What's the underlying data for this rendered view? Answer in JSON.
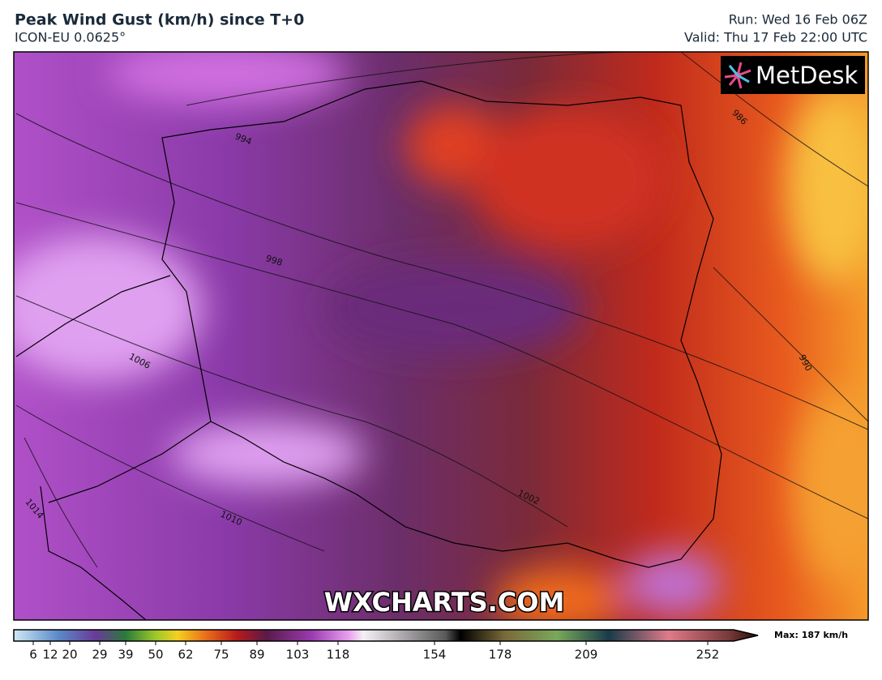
{
  "header": {
    "title": "Peak Wind Gust (km/h) since T+0",
    "subtitle": "ICON-EU 0.0625°",
    "run": "Run: Wed 16 Feb 06Z",
    "valid": "Valid: Thu 17 Feb 22:00 UTC"
  },
  "logo": "MetDesk",
  "watermark": "WXCHARTS.COM",
  "isobar_labels": [
    994,
    998,
    1006,
    1014,
    1010,
    1002,
    986,
    990
  ],
  "colorbar": {
    "ticks": [
      6,
      12,
      20,
      29,
      39,
      50,
      62,
      75,
      89,
      103,
      118,
      154,
      178,
      209,
      252
    ],
    "max_label": "Max: 187 km/h"
  }
}
